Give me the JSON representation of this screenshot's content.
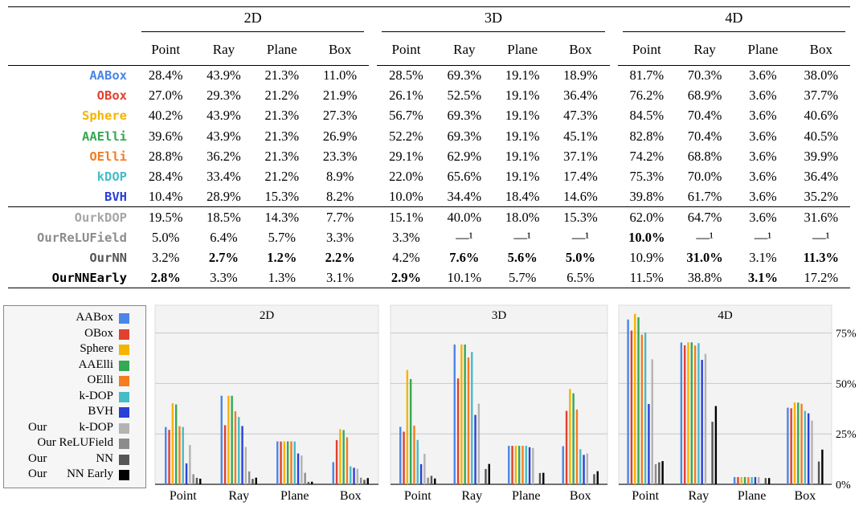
{
  "table": {
    "groups": [
      "2D",
      "3D",
      "4D"
    ],
    "columns": [
      "Point",
      "Ray",
      "Plane",
      "Box"
    ],
    "rows": [
      {
        "method": "AABox",
        "color": "#4a86e8",
        "values": [
          "28.4%",
          "43.9%",
          "21.3%",
          "11.0%",
          "28.5%",
          "69.3%",
          "19.1%",
          "18.9%",
          "81.7%",
          "70.3%",
          "3.6%",
          "38.0%"
        ],
        "bold": []
      },
      {
        "method": "OBox",
        "color": "#e0412f",
        "values": [
          "27.0%",
          "29.3%",
          "21.2%",
          "21.9%",
          "26.1%",
          "52.5%",
          "19.1%",
          "36.4%",
          "76.2%",
          "68.9%",
          "3.6%",
          "37.7%"
        ],
        "bold": []
      },
      {
        "method": "Sphere",
        "color": "#f4b400",
        "values": [
          "40.2%",
          "43.9%",
          "21.3%",
          "27.3%",
          "56.7%",
          "69.3%",
          "19.1%",
          "47.3%",
          "84.5%",
          "70.4%",
          "3.6%",
          "40.6%"
        ],
        "bold": []
      },
      {
        "method": "AAElli",
        "color": "#34a853",
        "values": [
          "39.6%",
          "43.9%",
          "21.3%",
          "26.9%",
          "52.2%",
          "69.3%",
          "19.1%",
          "45.1%",
          "82.8%",
          "70.4%",
          "3.6%",
          "40.5%"
        ],
        "bold": []
      },
      {
        "method": "OElli",
        "color": "#f57c1f",
        "values": [
          "28.8%",
          "36.2%",
          "21.3%",
          "23.3%",
          "29.1%",
          "62.9%",
          "19.1%",
          "37.1%",
          "74.2%",
          "68.8%",
          "3.6%",
          "39.9%"
        ],
        "bold": []
      },
      {
        "method": "kDOP",
        "color": "#46bdc6",
        "values": [
          "28.4%",
          "33.4%",
          "21.2%",
          "8.9%",
          "22.0%",
          "65.6%",
          "19.1%",
          "17.4%",
          "75.3%",
          "70.0%",
          "3.6%",
          "36.4%"
        ],
        "bold": []
      },
      {
        "method": "BVH",
        "color": "#2a3fd6",
        "values": [
          "10.4%",
          "28.9%",
          "15.3%",
          "8.2%",
          "10.0%",
          "34.4%",
          "18.4%",
          "14.6%",
          "39.8%",
          "61.7%",
          "3.6%",
          "35.2%"
        ],
        "bold": []
      },
      {
        "method": "OurkDOP",
        "color": "#a6a6a6",
        "values": [
          "19.5%",
          "18.5%",
          "14.3%",
          "7.7%",
          "15.1%",
          "40.0%",
          "18.0%",
          "15.3%",
          "62.0%",
          "64.7%",
          "3.6%",
          "31.6%"
        ],
        "bold": []
      },
      {
        "method": "OurReLUField",
        "color": "#8c8c8c",
        "values": [
          "5.0%",
          "6.4%",
          "5.7%",
          "3.3%",
          "3.3%",
          "—¹",
          "—¹",
          "—¹",
          "10.0%",
          "—¹",
          "—¹",
          "—¹"
        ],
        "bold": [
          8
        ]
      },
      {
        "method": "OurNN",
        "color": "#555555",
        "values": [
          "3.2%",
          "2.7%",
          "1.2%",
          "2.2%",
          "4.2%",
          "7.6%",
          "5.6%",
          "5.0%",
          "10.9%",
          "31.0%",
          "3.1%",
          "11.3%"
        ],
        "bold": [
          1,
          2,
          3,
          5,
          6,
          7,
          9,
          11
        ]
      },
      {
        "method": "OurNNEarly",
        "color": "#000000",
        "values": [
          "2.8%",
          "3.3%",
          "1.3%",
          "3.1%",
          "2.9%",
          "10.1%",
          "5.7%",
          "6.5%",
          "11.5%",
          "38.8%",
          "3.1%",
          "17.2%"
        ],
        "bold": [
          0,
          4,
          10
        ]
      }
    ]
  },
  "legend": {
    "items": [
      {
        "prefix": "",
        "label": "AABox",
        "color": "#4a86e8"
      },
      {
        "prefix": "",
        "label": "OBox",
        "color": "#e0412f"
      },
      {
        "prefix": "",
        "label": "Sphere",
        "color": "#f4b400"
      },
      {
        "prefix": "",
        "label": "AAElli",
        "color": "#34a853"
      },
      {
        "prefix": "",
        "label": "OElli",
        "color": "#f57c1f"
      },
      {
        "prefix": "",
        "label": "k-DOP",
        "color": "#46bdc6"
      },
      {
        "prefix": "",
        "label": "BVH",
        "color": "#2a3fd6"
      },
      {
        "prefix": "Our",
        "label": "k-DOP",
        "color": "#b3b3b3"
      },
      {
        "prefix": "",
        "label": "Our ReLUField",
        "color": "#8c8c8c"
      },
      {
        "prefix": "Our",
        "label": "NN",
        "color": "#555555"
      },
      {
        "prefix": "Our",
        "label": "NN Early",
        "color": "#000000"
      }
    ]
  },
  "chart_data": {
    "type": "bar",
    "panels": [
      "2D",
      "3D",
      "4D"
    ],
    "categories": [
      "Point",
      "Ray",
      "Plane",
      "Box"
    ],
    "y_ticks": [
      "0%",
      "25%",
      "50%",
      "75%"
    ],
    "ylim": [
      0,
      88
    ],
    "grid": true,
    "legend_position": "left",
    "series": [
      {
        "name": "AABox",
        "color": "#4a86e8",
        "values": [
          [
            28.4,
            43.9,
            21.3,
            11.0
          ],
          [
            28.5,
            69.3,
            19.1,
            18.9
          ],
          [
            81.7,
            70.3,
            3.6,
            38.0
          ]
        ]
      },
      {
        "name": "OBox",
        "color": "#e0412f",
        "values": [
          [
            27.0,
            29.3,
            21.2,
            21.9
          ],
          [
            26.1,
            52.5,
            19.1,
            36.4
          ],
          [
            76.2,
            68.9,
            3.6,
            37.7
          ]
        ]
      },
      {
        "name": "Sphere",
        "color": "#f4b400",
        "values": [
          [
            40.2,
            43.9,
            21.3,
            27.3
          ],
          [
            56.7,
            69.3,
            19.1,
            47.3
          ],
          [
            84.5,
            70.4,
            3.6,
            40.6
          ]
        ]
      },
      {
        "name": "AAElli",
        "color": "#34a853",
        "values": [
          [
            39.6,
            43.9,
            21.3,
            26.9
          ],
          [
            52.2,
            69.3,
            19.1,
            45.1
          ],
          [
            82.8,
            70.4,
            3.6,
            40.5
          ]
        ]
      },
      {
        "name": "OElli",
        "color": "#f57c1f",
        "values": [
          [
            28.8,
            36.2,
            21.3,
            23.3
          ],
          [
            29.1,
            62.9,
            19.1,
            37.1
          ],
          [
            74.2,
            68.8,
            3.6,
            39.9
          ]
        ]
      },
      {
        "name": "k-DOP",
        "color": "#46bdc6",
        "values": [
          [
            28.4,
            33.4,
            21.2,
            8.9
          ],
          [
            22.0,
            65.6,
            19.1,
            17.4
          ],
          [
            75.3,
            70.0,
            3.6,
            36.4
          ]
        ]
      },
      {
        "name": "BVH",
        "color": "#2a3fd6",
        "values": [
          [
            10.4,
            28.9,
            15.3,
            8.2
          ],
          [
            10.0,
            34.4,
            18.4,
            14.6
          ],
          [
            39.8,
            61.7,
            3.6,
            35.2
          ]
        ]
      },
      {
        "name": "Our k-DOP",
        "color": "#b3b3b3",
        "values": [
          [
            19.5,
            18.5,
            14.3,
            7.7
          ],
          [
            15.1,
            40.0,
            18.0,
            15.3
          ],
          [
            62.0,
            64.7,
            3.6,
            31.6
          ]
        ]
      },
      {
        "name": "Our ReLUField",
        "color": "#8c8c8c",
        "values": [
          [
            5.0,
            6.4,
            5.7,
            3.3
          ],
          [
            3.3,
            null,
            null,
            null
          ],
          [
            10.0,
            null,
            null,
            null
          ]
        ]
      },
      {
        "name": "Our NN",
        "color": "#555555",
        "values": [
          [
            3.2,
            2.7,
            1.2,
            2.2
          ],
          [
            4.2,
            7.6,
            5.6,
            5.0
          ],
          [
            10.9,
            31.0,
            3.1,
            11.3
          ]
        ]
      },
      {
        "name": "Our NN Early",
        "color": "#000000",
        "values": [
          [
            2.8,
            3.3,
            1.3,
            3.1
          ],
          [
            2.9,
            10.1,
            5.7,
            6.5
          ],
          [
            11.5,
            38.8,
            3.1,
            17.2
          ]
        ]
      }
    ]
  }
}
